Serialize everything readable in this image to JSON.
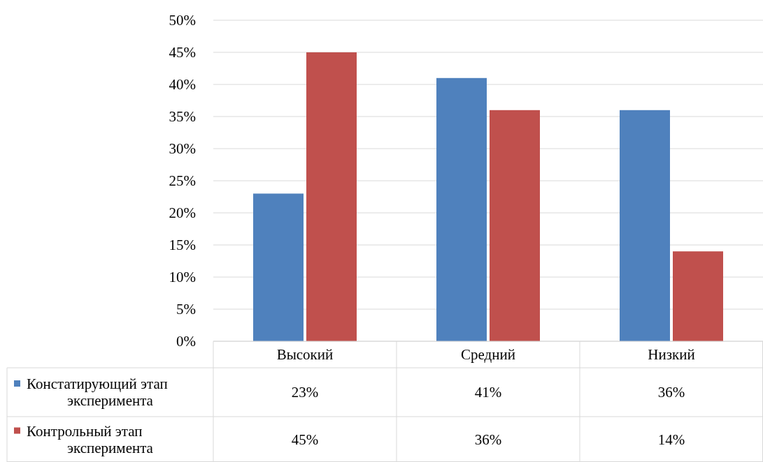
{
  "chart_data": {
    "type": "bar",
    "categories": [
      "Высокий",
      "Средний",
      "Низкий"
    ],
    "series": [
      {
        "name": "Констатирующий этап эксперимента",
        "color": "#4f81bd",
        "values": [
          23,
          41,
          36
        ],
        "value_labels": [
          "23%",
          "41%",
          "36%"
        ]
      },
      {
        "name": "Контрольный этап эксперимента",
        "color": "#c0504d",
        "values": [
          45,
          36,
          14
        ],
        "value_labels": [
          "45%",
          "36%",
          "14%"
        ]
      }
    ],
    "ylim": [
      0,
      50
    ],
    "yticks": [
      {
        "value": 0,
        "label": "0%"
      },
      {
        "value": 5,
        "label": "5%"
      },
      {
        "value": 10,
        "label": "10%"
      },
      {
        "value": 15,
        "label": "15%"
      },
      {
        "value": 20,
        "label": "20%"
      },
      {
        "value": 25,
        "label": "25%"
      },
      {
        "value": 30,
        "label": "30%"
      },
      {
        "value": 35,
        "label": "35%"
      },
      {
        "value": 40,
        "label": "40%"
      },
      {
        "value": 45,
        "label": "45%"
      },
      {
        "value": 50,
        "label": "50%"
      }
    ],
    "grid": "y",
    "legend": "bottom"
  }
}
